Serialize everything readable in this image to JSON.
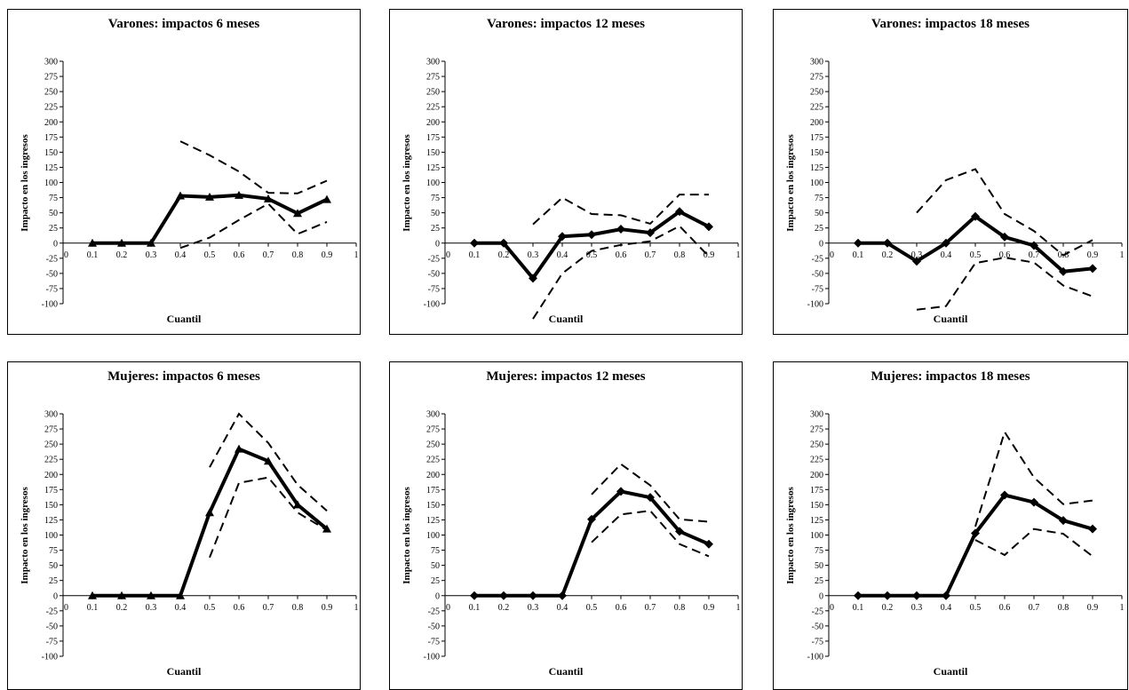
{
  "chart_data": [
    {
      "type": "line",
      "title": "Varones: impactos 6 meses",
      "xlabel": "Cuantil",
      "ylabel": "Impacto en los ingresos",
      "xlim": [
        0,
        1
      ],
      "ylim": [
        -100,
        300
      ],
      "x_ticks": [
        "0",
        "0.1",
        "0.2",
        "0.3",
        "0.4",
        "0.5",
        "0.6",
        "0.7",
        "0.8",
        "0.9",
        "1"
      ],
      "y_ticks": [
        "300",
        "275",
        "250",
        "225",
        "200",
        "175",
        "150",
        "125",
        "100",
        "75",
        "50",
        "25",
        "0",
        "-25",
        "-50",
        "-75",
        "-100"
      ],
      "marker": "triangle",
      "estimate": {
        "x": [
          0.1,
          0.2,
          0.3,
          0.4,
          0.5,
          0.6,
          0.7,
          0.8,
          0.9
        ],
        "y": [
          0,
          0,
          0,
          78,
          76,
          79,
          73,
          49,
          72
        ]
      },
      "upper": {
        "x": [
          0.4,
          0.5,
          0.6,
          0.7,
          0.8,
          0.9
        ],
        "y": [
          168,
          145,
          118,
          83,
          82,
          103
        ]
      },
      "lower": {
        "x": [
          0.4,
          0.5,
          0.6,
          0.7,
          0.8,
          0.9
        ],
        "y": [
          -8,
          9,
          38,
          65,
          15,
          35
        ]
      }
    },
    {
      "type": "line",
      "title": "Varones: impactos 12 meses",
      "xlabel": "Cuantil",
      "ylabel": "Impacto en los ingresos",
      "xlim": [
        0,
        1
      ],
      "ylim": [
        -100,
        300
      ],
      "x_ticks": [
        "0",
        "0.1",
        "0.2",
        "0.3",
        "0.4",
        "0.5",
        "0.6",
        "0.7",
        "0.8",
        "0.9",
        "1"
      ],
      "y_ticks": [
        "300",
        "275",
        "250",
        "225",
        "200",
        "175",
        "150",
        "125",
        "100",
        "75",
        "50",
        "25",
        "0",
        "-25",
        "-50",
        "-75",
        "-100"
      ],
      "marker": "diamond",
      "estimate": {
        "x": [
          0.1,
          0.2,
          0.3,
          0.4,
          0.5,
          0.6,
          0.7,
          0.8,
          0.9
        ],
        "y": [
          0,
          0,
          -58,
          11,
          14,
          23,
          17,
          52,
          27
        ]
      },
      "upper": {
        "x": [
          0.3,
          0.4,
          0.5,
          0.6,
          0.7,
          0.8,
          0.9
        ],
        "y": [
          31,
          75,
          48,
          46,
          32,
          80,
          80
        ]
      },
      "lower": {
        "x": [
          0.3,
          0.4,
          0.5,
          0.6,
          0.7,
          0.8,
          0.9
        ],
        "y": [
          -125,
          -50,
          -13,
          -3,
          3,
          28,
          -22
        ]
      }
    },
    {
      "type": "line",
      "title": "Varones: impactos 18 meses",
      "xlabel": "Cuantil",
      "ylabel": "Impacto en los ingresos",
      "xlim": [
        0,
        1
      ],
      "ylim": [
        -100,
        300
      ],
      "x_ticks": [
        "0",
        "0.1",
        "0.2",
        "0.3",
        "0.4",
        "0.5",
        "0.6",
        "0.7",
        "0.8",
        "0.9",
        "1"
      ],
      "y_ticks": [
        "300",
        "275",
        "250",
        "225",
        "200",
        "175",
        "150",
        "125",
        "100",
        "75",
        "50",
        "25",
        "0",
        "-25",
        "-50",
        "-75",
        "-100"
      ],
      "marker": "diamond",
      "estimate": {
        "x": [
          0.1,
          0.2,
          0.3,
          0.4,
          0.5,
          0.6,
          0.7,
          0.8,
          0.9
        ],
        "y": [
          0,
          0,
          -30,
          0,
          44,
          10,
          -4,
          -47,
          -42
        ]
      },
      "upper": {
        "x": [
          0.3,
          0.4,
          0.5,
          0.6,
          0.7,
          0.8,
          0.9
        ],
        "y": [
          50,
          104,
          122,
          48,
          20,
          -20,
          5
        ]
      },
      "lower": {
        "x": [
          0.3,
          0.4,
          0.5,
          0.6,
          0.7,
          0.8,
          0.9
        ],
        "y": [
          -110,
          -104,
          -33,
          -24,
          -32,
          -70,
          -88
        ]
      }
    },
    {
      "type": "line",
      "title": "Mujeres: impactos 6 meses",
      "xlabel": "Cuantil",
      "ylabel": "Impacto en los ingresos",
      "xlim": [
        0,
        1
      ],
      "ylim": [
        -100,
        300
      ],
      "x_ticks": [
        "0",
        "0.1",
        "0.2",
        "0.3",
        "0.4",
        "0.5",
        "0.6",
        "0.7",
        "0.8",
        "0.9",
        "1"
      ],
      "y_ticks": [
        "300",
        "275",
        "250",
        "225",
        "200",
        "175",
        "150",
        "125",
        "100",
        "75",
        "50",
        "25",
        "0",
        "-25",
        "-50",
        "-75",
        "-100"
      ],
      "marker": "triangle",
      "estimate": {
        "x": [
          0.1,
          0.2,
          0.3,
          0.4,
          0.5,
          0.6,
          0.7,
          0.8,
          0.9
        ],
        "y": [
          0,
          0,
          0,
          0,
          137,
          242,
          222,
          150,
          110
        ]
      },
      "upper": {
        "x": [
          0.5,
          0.6,
          0.7,
          0.8,
          0.9
        ],
        "y": [
          212,
          300,
          252,
          183,
          140
        ]
      },
      "lower": {
        "x": [
          0.5,
          0.6,
          0.7,
          0.8,
          0.9
        ],
        "y": [
          63,
          186,
          195,
          137,
          108
        ]
      }
    },
    {
      "type": "line",
      "title": "Mujeres: impactos 12 meses",
      "xlabel": "Cuantil",
      "ylabel": "Impacto en los ingresos",
      "xlim": [
        0,
        1
      ],
      "ylim": [
        -100,
        300
      ],
      "x_ticks": [
        "0",
        "0.1",
        "0.2",
        "0.3",
        "0.4",
        "0.5",
        "0.6",
        "0.7",
        "0.8",
        "0.9",
        "1"
      ],
      "y_ticks": [
        "300",
        "275",
        "250",
        "225",
        "200",
        "175",
        "150",
        "125",
        "100",
        "75",
        "50",
        "25",
        "0",
        "-25",
        "-50",
        "-75",
        "-100"
      ],
      "marker": "diamond",
      "estimate": {
        "x": [
          0.1,
          0.2,
          0.3,
          0.4,
          0.5,
          0.6,
          0.7,
          0.8,
          0.9
        ],
        "y": [
          0,
          0,
          0,
          0,
          126,
          172,
          162,
          106,
          85
        ]
      },
      "upper": {
        "x": [
          0.5,
          0.6,
          0.7,
          0.8,
          0.9
        ],
        "y": [
          167,
          217,
          182,
          126,
          122
        ]
      },
      "lower": {
        "x": [
          0.5,
          0.6,
          0.7,
          0.8,
          0.9
        ],
        "y": [
          88,
          134,
          140,
          85,
          65
        ]
      }
    },
    {
      "type": "line",
      "title": "Mujeres: impactos 18 meses",
      "xlabel": "Cuantil",
      "ylabel": "Impacto en los ingresos",
      "xlim": [
        0,
        1
      ],
      "ylim": [
        -100,
        300
      ],
      "x_ticks": [
        "0",
        "0.1",
        "0.2",
        "0.3",
        "0.4",
        "0.5",
        "0.6",
        "0.7",
        "0.8",
        "0.9",
        "1"
      ],
      "y_ticks": [
        "300",
        "275",
        "250",
        "225",
        "200",
        "175",
        "150",
        "125",
        "100",
        "75",
        "50",
        "25",
        "0",
        "-25",
        "-50",
        "-75",
        "-100"
      ],
      "marker": "diamond",
      "estimate": {
        "x": [
          0.1,
          0.2,
          0.3,
          0.4,
          0.5,
          0.6,
          0.7,
          0.8,
          0.9
        ],
        "y": [
          0,
          0,
          0,
          0,
          103,
          166,
          154,
          124,
          110
        ]
      },
      "upper": {
        "x": [
          0.5,
          0.6,
          0.7,
          0.8,
          0.9
        ],
        "y": [
          114,
          270,
          195,
          151,
          157
        ]
      },
      "lower": {
        "x": [
          0.5,
          0.6,
          0.7,
          0.8,
          0.9
        ],
        "y": [
          92,
          67,
          110,
          102,
          65
        ]
      }
    }
  ]
}
